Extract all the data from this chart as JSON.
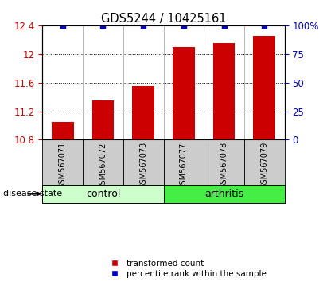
{
  "title": "GDS5244 / 10425161",
  "samples": [
    "GSM567071",
    "GSM567072",
    "GSM567073",
    "GSM567077",
    "GSM567078",
    "GSM567079"
  ],
  "bar_values": [
    11.05,
    11.35,
    11.55,
    12.1,
    12.15,
    12.25
  ],
  "percentile_values": [
    100,
    100,
    100,
    100,
    100,
    100
  ],
  "ylim_left": [
    10.8,
    12.4
  ],
  "ylim_right": [
    0,
    100
  ],
  "yticks_left": [
    10.8,
    11.2,
    11.6,
    12.0,
    12.4
  ],
  "yticks_right": [
    0,
    25,
    50,
    75,
    100
  ],
  "ytick_labels_left": [
    "10.8",
    "11.2",
    "11.6",
    "12",
    "12.4"
  ],
  "ytick_labels_right": [
    "0",
    "25",
    "50",
    "75",
    "100%"
  ],
  "bar_color": "#cc0000",
  "dot_color": "#0000cc",
  "groups": [
    {
      "label": "control",
      "indices": [
        0,
        1,
        2
      ],
      "bg_color": "#ccffcc",
      "edge_color": "#000000"
    },
    {
      "label": "arthritis",
      "indices": [
        3,
        4,
        5
      ],
      "bg_color": "#44ee44",
      "edge_color": "#000000"
    }
  ],
  "sample_box_color": "#cccccc",
  "disease_state_label": "disease state",
  "legend_items": [
    {
      "label": "transformed count",
      "color": "#cc0000"
    },
    {
      "label": "percentile rank within the sample",
      "color": "#0000cc"
    }
  ],
  "bar_width": 0.55
}
